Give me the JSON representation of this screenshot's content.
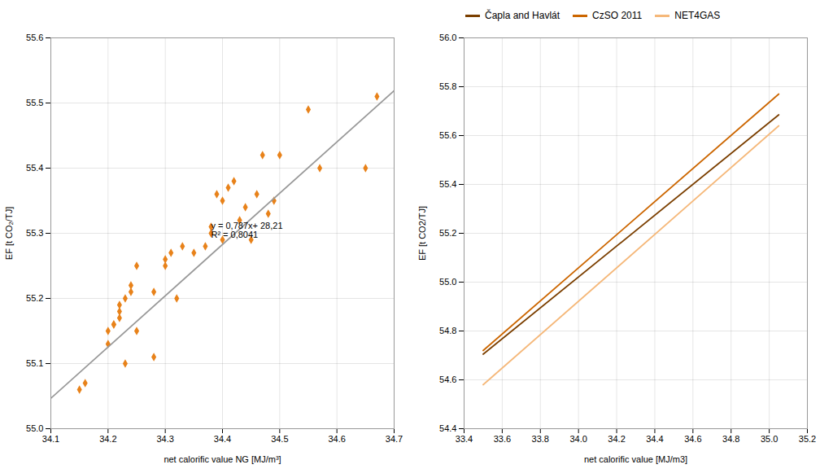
{
  "chart_data": [
    {
      "type": "scatter",
      "xlabel": "net calorific value NG [MJ/m³]",
      "ylabel": "EF [t CO₂/TJ]",
      "xlim": [
        34.1,
        34.7
      ],
      "ylim": [
        55.0,
        55.6
      ],
      "xticks": [
        34.1,
        34.2,
        34.3,
        34.4,
        34.5,
        34.6,
        34.7
      ],
      "yticks": [
        {
          "value": 55,
          "label": "55.0"
        },
        55.1,
        55.2,
        55.3,
        55.4,
        55.5,
        55.6
      ],
      "grid": true,
      "series": [
        {
          "type": "scatter",
          "color": "#E8821A",
          "marker": "diamond",
          "x": [
            34.15,
            34.16,
            34.2,
            34.2,
            34.21,
            34.21,
            34.22,
            34.22,
            34.22,
            34.23,
            34.23,
            34.24,
            34.24,
            34.25,
            34.25,
            34.28,
            34.28,
            34.3,
            34.3,
            34.31,
            34.32,
            34.33,
            34.35,
            34.37,
            34.38,
            34.38,
            34.39,
            34.4,
            34.4,
            34.41,
            34.42,
            34.43,
            34.44,
            34.45,
            34.46,
            34.47,
            34.48,
            34.49,
            34.5,
            34.55,
            34.57,
            34.65,
            34.67
          ],
          "values": [
            55.06,
            55.07,
            55.13,
            55.15,
            55.16,
            55.16,
            55.17,
            55.18,
            55.19,
            55.2,
            55.1,
            55.21,
            55.22,
            55.15,
            55.25,
            55.11,
            55.21,
            55.25,
            55.26,
            55.27,
            55.2,
            55.28,
            55.27,
            55.28,
            55.3,
            55.31,
            55.36,
            55.29,
            55.35,
            55.37,
            55.38,
            55.32,
            55.34,
            55.29,
            55.36,
            55.42,
            55.33,
            55.35,
            55.42,
            55.49,
            55.4,
            55.4,
            55.51
          ]
        },
        {
          "type": "line",
          "color": "#999999",
          "x": [
            34.1,
            34.7
          ],
          "values": [
            55.0467,
            55.5189
          ]
        }
      ],
      "annotations": [
        {
          "text": "y = 0,787x+ 28,21\nR² = 0,8041",
          "x": 34.38,
          "y": 55.305
        }
      ]
    },
    {
      "type": "line",
      "xlabel": "net calorific value [MJ/m3]",
      "ylabel": "EF [t CO2/TJ]",
      "xlim": [
        33.4,
        35.2
      ],
      "ylim": [
        54.4,
        56.0
      ],
      "xticks": [
        33.4,
        33.6,
        33.8,
        {
          "value": 34,
          "label": "34.0"
        },
        34.2,
        34.4,
        34.6,
        34.8,
        {
          "value": 35,
          "label": "35.0"
        },
        35.2
      ],
      "yticks": [
        54.4,
        54.6,
        54.8,
        {
          "value": 55,
          "label": "55.0"
        },
        55.2,
        55.4,
        55.6,
        55.8,
        {
          "value": 56,
          "label": "56.0"
        }
      ],
      "grid": true,
      "legend": "upper left",
      "series": [
        {
          "name": "Čapla and Havlát",
          "color": "#7B3F00",
          "x": [
            33.5,
            35.05
          ],
          "values": [
            54.705,
            55.685
          ]
        },
        {
          "name": "CzSO 2011",
          "color": "#CC6600",
          "x": [
            33.5,
            35.05
          ],
          "values": [
            54.72,
            55.77
          ]
        },
        {
          "name": "NET4GAS",
          "color": "#F5B87A",
          "x": [
            33.5,
            35.05
          ],
          "values": [
            54.58,
            55.64
          ]
        }
      ]
    }
  ]
}
